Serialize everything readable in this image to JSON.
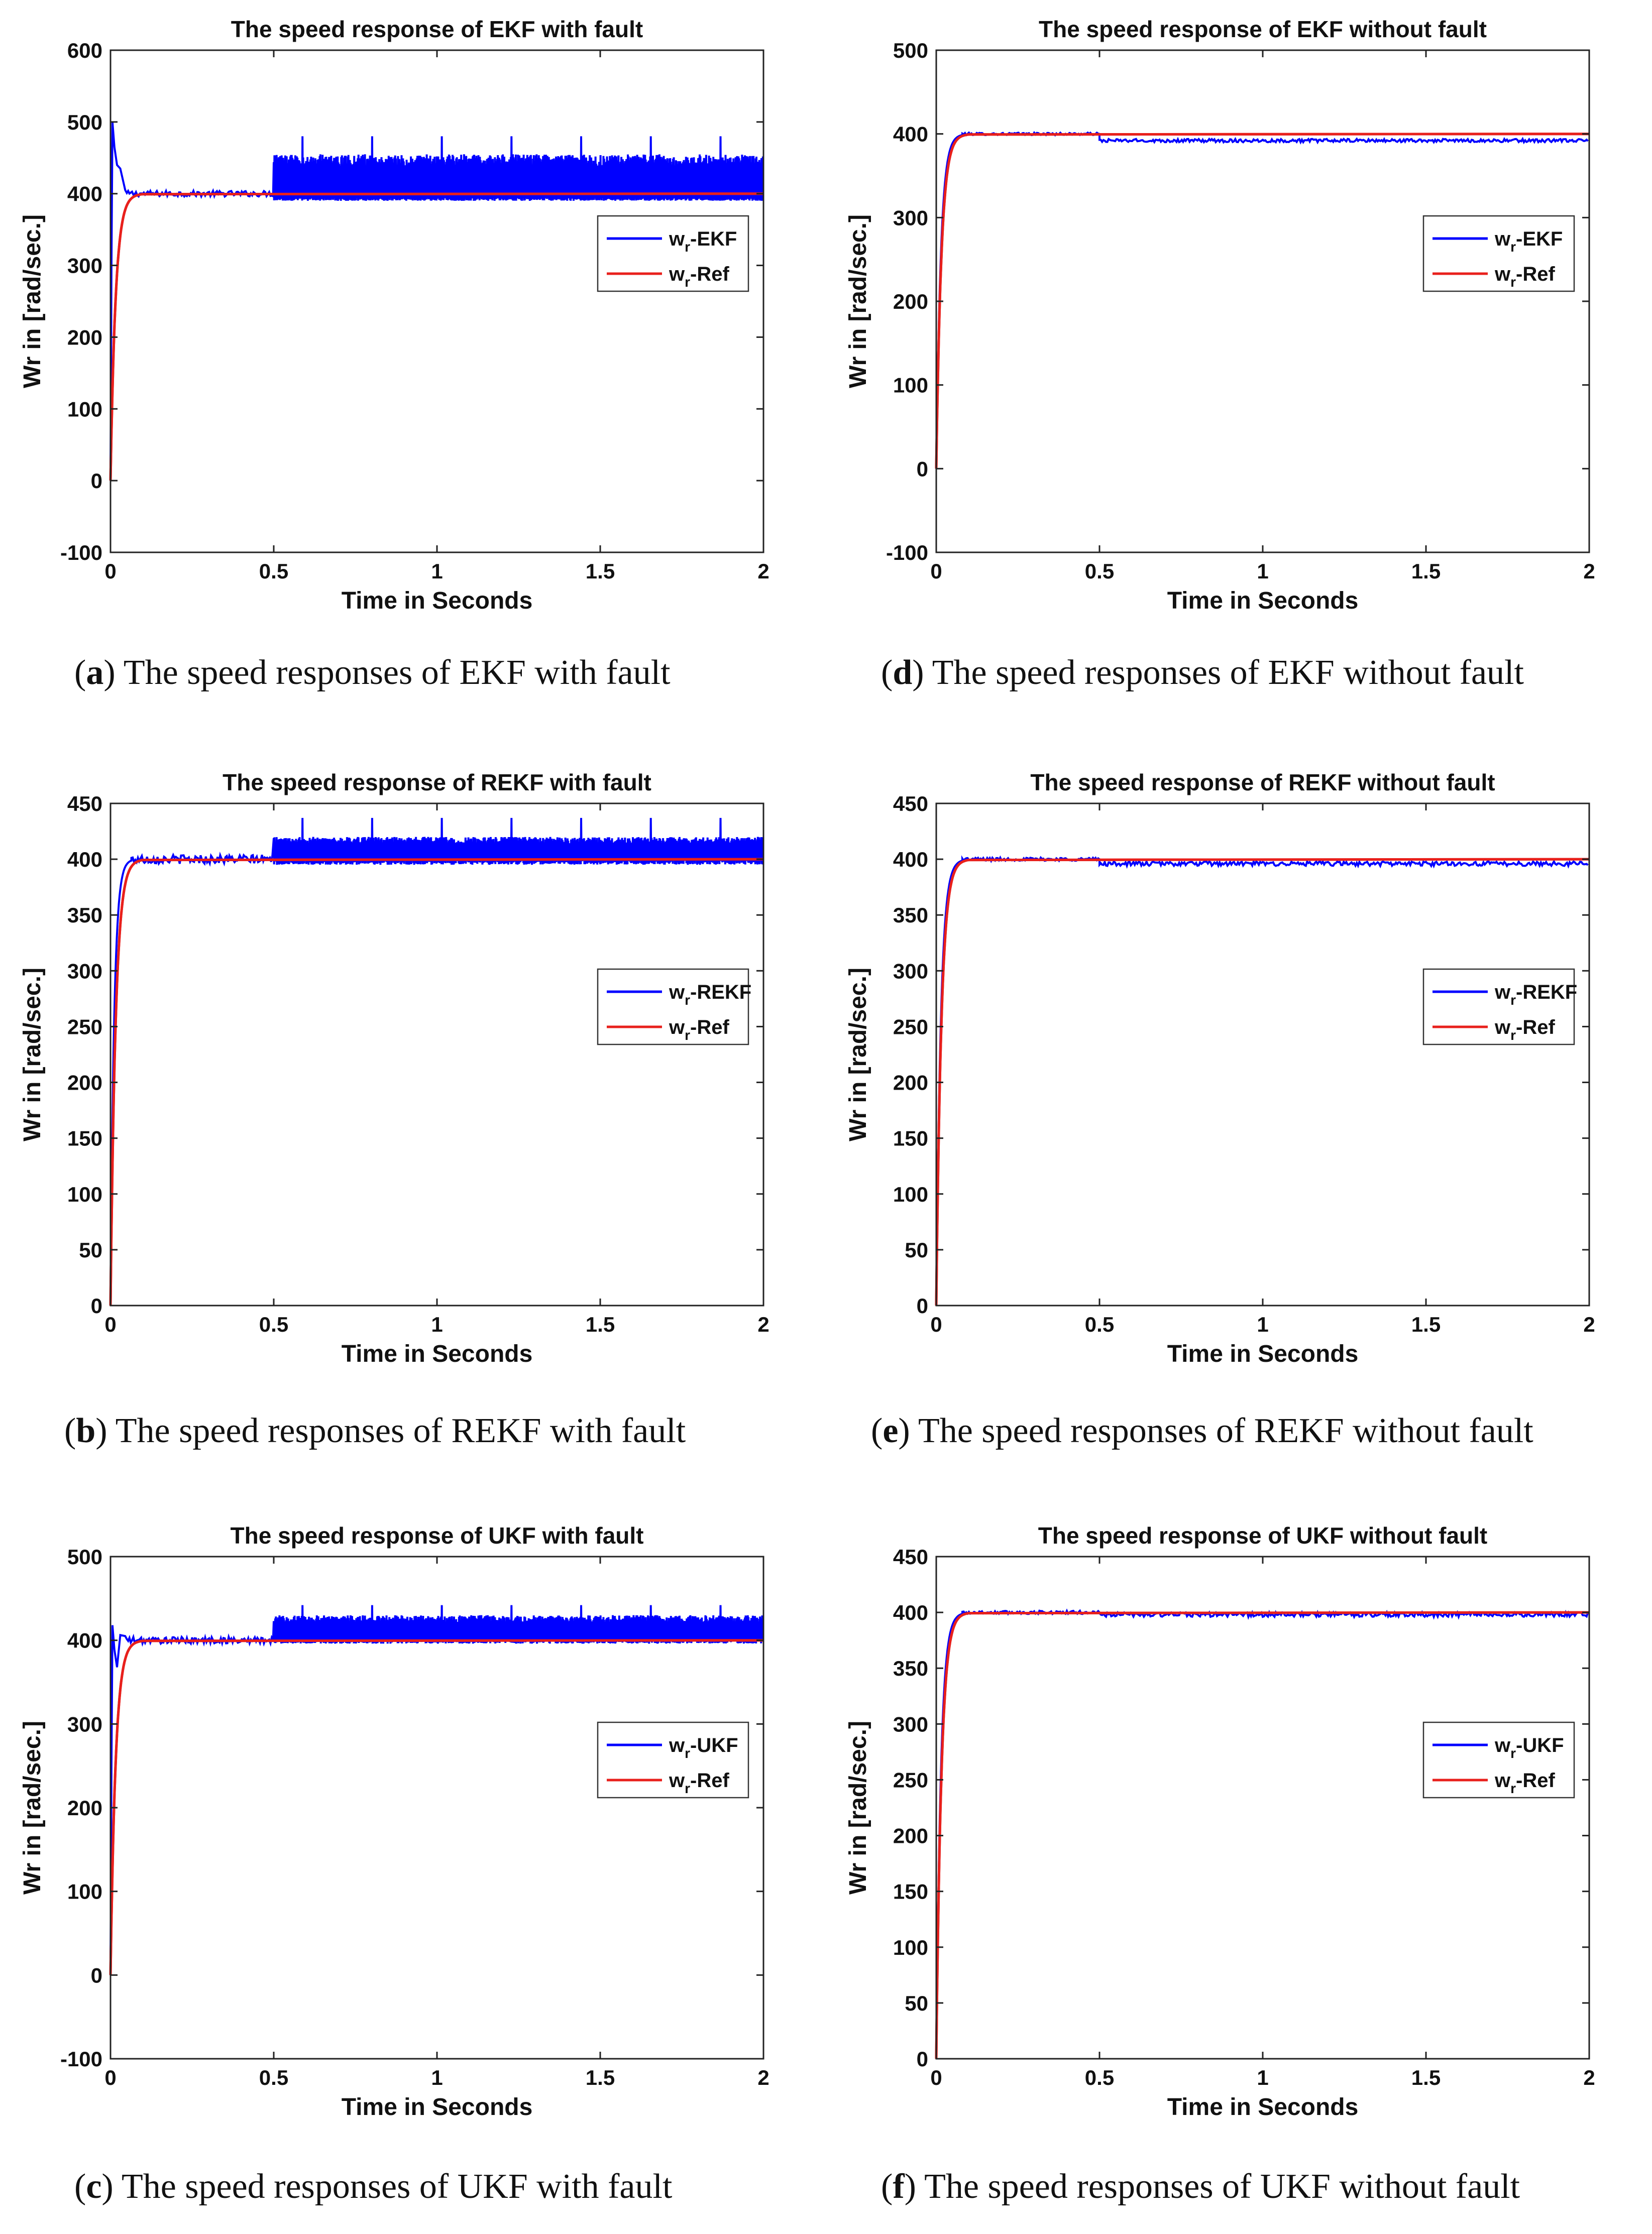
{
  "panels": [
    {
      "id": "a",
      "caption_letter": "a",
      "caption_text": " The speed responses of EKF with fault",
      "chart_data": {
        "type": "line",
        "title": "The speed response of EKF with fault",
        "xlabel": "Time in Seconds",
        "ylabel": "Wr in [rad/sec.]",
        "xlim": [
          0,
          2
        ],
        "ylim": [
          -100,
          600
        ],
        "xticks": [
          "0",
          "0.5",
          "1",
          "1.5",
          "2"
        ],
        "yticks": [
          "-100",
          "0",
          "100",
          "200",
          "300",
          "400",
          "500",
          "600"
        ],
        "grid": false,
        "legend_position": "right",
        "series": [
          {
            "name": "-EKF",
            "sub": "r",
            "base": "w",
            "color": "#0000ff",
            "rise_end": 0.04,
            "overshoot": 500,
            "steady": 400,
            "fault_start": 0.5,
            "fault_low": 390,
            "fault_high": 455,
            "fault_spike": 480
          },
          {
            "name": "-Ref",
            "sub": "r",
            "base": "w",
            "color": "#e8201c",
            "rise_end": 0.05,
            "steady": 400
          }
        ]
      }
    },
    {
      "id": "d",
      "caption_letter": "d",
      "caption_text": " The speed responses of EKF without fault",
      "chart_data": {
        "type": "line",
        "title": "The speed response of EKF without fault",
        "xlabel": "Time in Seconds",
        "ylabel": "Wr in [rad/sec.]",
        "xlim": [
          0,
          2
        ],
        "ylim": [
          -100,
          500
        ],
        "xticks": [
          "0",
          "0.5",
          "1",
          "1.5",
          "2"
        ],
        "yticks": [
          "-100",
          "0",
          "100",
          "200",
          "300",
          "400",
          "500"
        ],
        "grid": false,
        "legend_position": "right",
        "series": [
          {
            "name": "-EKF",
            "sub": "r",
            "base": "w",
            "color": "#0000ff",
            "rise_end": 0.05,
            "steady": 400,
            "after_fault": 392
          },
          {
            "name": "-Ref",
            "sub": "r",
            "base": "w",
            "color": "#e8201c",
            "rise_end": 0.05,
            "steady": 400
          }
        ]
      }
    },
    {
      "id": "b",
      "caption_letter": "b",
      "caption_text": " The speed responses of REKF with fault",
      "chart_data": {
        "type": "line",
        "title": "The speed response of REKF with fault",
        "xlabel": "Time in Seconds",
        "ylabel": "Wr in [rad/sec.]",
        "xlim": [
          0,
          2
        ],
        "ylim": [
          0,
          450
        ],
        "xticks": [
          "0",
          "0.5",
          "1",
          "1.5",
          "2"
        ],
        "yticks": [
          "0",
          "50",
          "100",
          "150",
          "200",
          "250",
          "300",
          "350",
          "400",
          "450"
        ],
        "grid": false,
        "legend_position": "right",
        "series": [
          {
            "name": "-REKF",
            "sub": "r",
            "base": "w",
            "color": "#0000ff",
            "rise_end": 0.04,
            "steady": 400,
            "fault_start": 0.5,
            "fault_low": 395,
            "fault_high": 420,
            "fault_spike": 437
          },
          {
            "name": "-Ref",
            "sub": "r",
            "base": "w",
            "color": "#e8201c",
            "rise_end": 0.05,
            "steady": 400
          }
        ]
      }
    },
    {
      "id": "e",
      "caption_letter": "e",
      "caption_text": " The speed responses of REKF without fault",
      "chart_data": {
        "type": "line",
        "title": "The speed response of REKF without fault",
        "xlabel": "Time in Seconds",
        "ylabel": "Wr in [rad/sec.]",
        "xlim": [
          0,
          2
        ],
        "ylim": [
          0,
          450
        ],
        "xticks": [
          "0",
          "0.5",
          "1",
          "1.5",
          "2"
        ],
        "yticks": [
          "0",
          "50",
          "100",
          "150",
          "200",
          "250",
          "300",
          "350",
          "400",
          "450"
        ],
        "grid": false,
        "legend_position": "right",
        "series": [
          {
            "name": "-REKF",
            "sub": "r",
            "base": "w",
            "color": "#0000ff",
            "rise_end": 0.05,
            "steady": 400,
            "after_fault": 396
          },
          {
            "name": "-Ref",
            "sub": "r",
            "base": "w",
            "color": "#e8201c",
            "rise_end": 0.05,
            "steady": 400
          }
        ]
      }
    },
    {
      "id": "c",
      "caption_letter": "c",
      "caption_text": " The speed responses of UKF with fault",
      "chart_data": {
        "type": "line",
        "title": "The speed response of UKF with fault",
        "xlabel": "Time in Seconds",
        "ylabel": "Wr in [rad/sec.]",
        "xlim": [
          0,
          2
        ],
        "ylim": [
          -100,
          500
        ],
        "xticks": [
          "0",
          "0.5",
          "1",
          "1.5",
          "2"
        ],
        "yticks": [
          "-100",
          "0",
          "100",
          "200",
          "300",
          "400",
          "500"
        ],
        "grid": false,
        "legend_position": "right",
        "series": [
          {
            "name": "-UKF",
            "sub": "r",
            "base": "w",
            "color": "#0000ff",
            "rise_end": 0.03,
            "overshoot": 418,
            "steady": 400,
            "fault_start": 0.5,
            "fault_low": 396,
            "fault_high": 430,
            "fault_spike": 442
          },
          {
            "name": "-Ref",
            "sub": "r",
            "base": "w",
            "color": "#e8201c",
            "rise_end": 0.05,
            "steady": 400
          }
        ]
      }
    },
    {
      "id": "f",
      "caption_letter": "f",
      "caption_text": " The speed responses of UKF without fault",
      "chart_data": {
        "type": "line",
        "title": "The speed response of UKF without fault",
        "xlabel": "Time in Seconds",
        "ylabel": "Wr in [rad/sec.]",
        "xlim": [
          0,
          2
        ],
        "ylim": [
          0,
          450
        ],
        "xticks": [
          "0",
          "0.5",
          "1",
          "1.5",
          "2"
        ],
        "yticks": [
          "0",
          "50",
          "100",
          "150",
          "200",
          "250",
          "300",
          "350",
          "400",
          "450"
        ],
        "grid": false,
        "legend_position": "right",
        "series": [
          {
            "name": "-UKF",
            "sub": "r",
            "base": "w",
            "color": "#0000ff",
            "rise_end": 0.05,
            "steady": 400,
            "after_fault": 398
          },
          {
            "name": "-Ref",
            "sub": "r",
            "base": "w",
            "color": "#e8201c",
            "rise_end": 0.05,
            "steady": 400
          }
        ]
      }
    }
  ]
}
